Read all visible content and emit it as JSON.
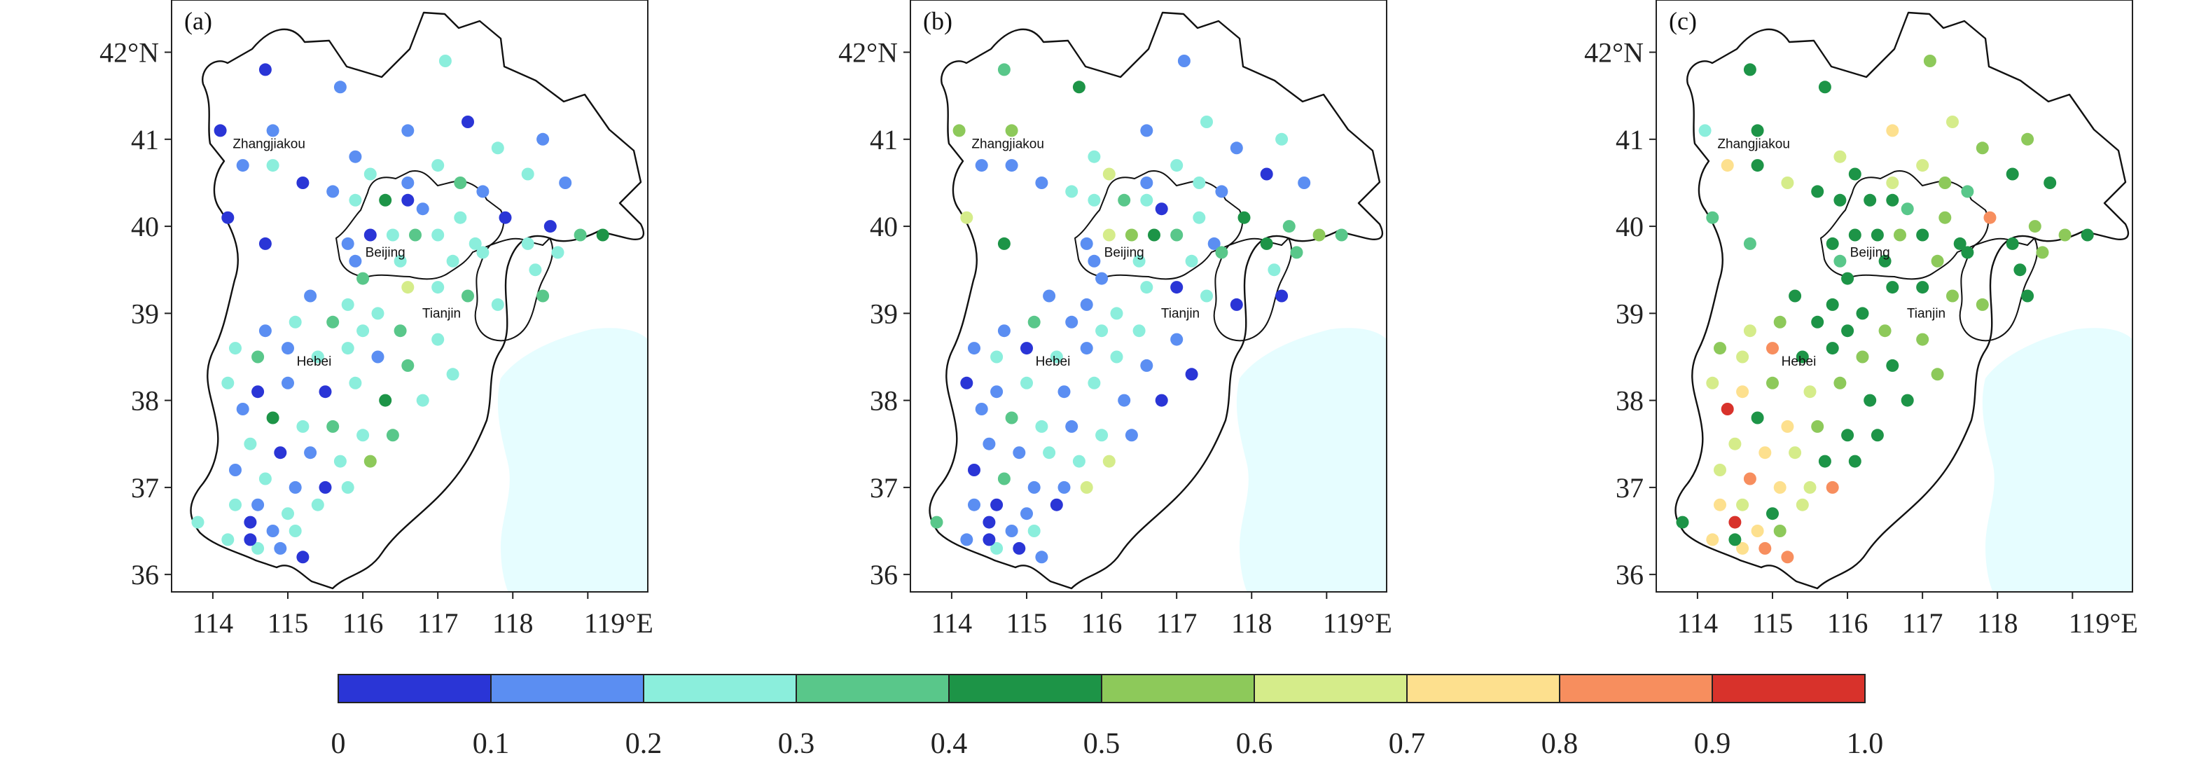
{
  "panels": [
    {
      "id": "a",
      "label": "(a)"
    },
    {
      "id": "b",
      "label": "(b)"
    },
    {
      "id": "c",
      "label": "(c)"
    }
  ],
  "lat_ticks": [
    "42°N",
    "41",
    "40",
    "39",
    "38",
    "37",
    "36"
  ],
  "lon_ticks": [
    "114",
    "115",
    "116",
    "117",
    "118",
    "119°E"
  ],
  "places": [
    "Zhangjiakou",
    "Beijing",
    "Tianjin",
    "Hebei"
  ],
  "colorbar": {
    "ticks": [
      "0",
      "0.1",
      "0.2",
      "0.3",
      "0.4",
      "0.5",
      "0.6",
      "0.7",
      "0.8",
      "0.9",
      "1.0"
    ],
    "colors": [
      "#2a35d6",
      "#5b8ef2",
      "#8beedc",
      "#59c78a",
      "#1d9447",
      "#8dc95a",
      "#d5ec8a",
      "#fde08e",
      "#f78e5e",
      "#d8322b"
    ]
  },
  "map_colors": {
    "sea": "#e6fdff",
    "border": "#111111"
  },
  "chart_data": {
    "type": "scatter",
    "description_note": "",
    "lat_range": [
      36,
      42
    ],
    "lon_range": [
      113.5,
      119.5
    ],
    "value_range": [
      0,
      1.0
    ],
    "stations": [
      {
        "lon": 114.7,
        "lat": 41.8,
        "v": [
          0.05,
          0.35,
          0.45
        ]
      },
      {
        "lon": 115.7,
        "lat": 41.6,
        "v": [
          0.15,
          0.45,
          0.45
        ]
      },
      {
        "lon": 117.1,
        "lat": 41.9,
        "v": [
          0.25,
          0.15,
          0.55
        ]
      },
      {
        "lon": 114.1,
        "lat": 41.1,
        "v": [
          0.05,
          0.55,
          0.25
        ]
      },
      {
        "lon": 114.8,
        "lat": 41.1,
        "v": [
          0.15,
          0.55,
          0.45
        ]
      },
      {
        "lon": 116.6,
        "lat": 41.1,
        "v": [
          0.15,
          0.15,
          0.75
        ]
      },
      {
        "lon": 117.4,
        "lat": 41.2,
        "v": [
          0.05,
          0.25,
          0.65
        ]
      },
      {
        "lon": 117.8,
        "lat": 40.9,
        "v": [
          0.25,
          0.15,
          0.55
        ]
      },
      {
        "lon": 118.4,
        "lat": 41.0,
        "v": [
          0.15,
          0.25,
          0.55
        ]
      },
      {
        "lon": 115.9,
        "lat": 40.8,
        "v": [
          0.15,
          0.25,
          0.65
        ]
      },
      {
        "lon": 114.4,
        "lat": 40.7,
        "v": [
          0.15,
          0.15,
          0.75
        ]
      },
      {
        "lon": 114.8,
        "lat": 40.7,
        "v": [
          0.25,
          0.15,
          0.45
        ]
      },
      {
        "lon": 115.2,
        "lat": 40.5,
        "v": [
          0.05,
          0.15,
          0.65
        ]
      },
      {
        "lon": 115.6,
        "lat": 40.4,
        "v": [
          0.15,
          0.25,
          0.45
        ]
      },
      {
        "lon": 116.1,
        "lat": 40.6,
        "v": [
          0.25,
          0.65,
          0.45
        ]
      },
      {
        "lon": 116.6,
        "lat": 40.5,
        "v": [
          0.15,
          0.15,
          0.65
        ]
      },
      {
        "lon": 117.0,
        "lat": 40.7,
        "v": [
          0.25,
          0.25,
          0.65
        ]
      },
      {
        "lon": 117.3,
        "lat": 40.5,
        "v": [
          0.35,
          0.25,
          0.55
        ]
      },
      {
        "lon": 117.6,
        "lat": 40.4,
        "v": [
          0.15,
          0.15,
          0.35
        ]
      },
      {
        "lon": 118.2,
        "lat": 40.6,
        "v": [
          0.25,
          0.05,
          0.45
        ]
      },
      {
        "lon": 118.7,
        "lat": 40.5,
        "v": [
          0.15,
          0.15,
          0.45
        ]
      },
      {
        "lon": 114.2,
        "lat": 40.1,
        "v": [
          0.05,
          0.65,
          0.35
        ]
      },
      {
        "lon": 115.9,
        "lat": 40.3,
        "v": [
          0.25,
          0.25,
          0.45
        ]
      },
      {
        "lon": 116.3,
        "lat": 40.3,
        "v": [
          0.45,
          0.35,
          0.45
        ]
      },
      {
        "lon": 116.6,
        "lat": 40.3,
        "v": [
          0.05,
          0.25,
          0.45
        ]
      },
      {
        "lon": 116.8,
        "lat": 40.2,
        "v": [
          0.15,
          0.05,
          0.35
        ]
      },
      {
        "lon": 117.3,
        "lat": 40.1,
        "v": [
          0.25,
          0.25,
          0.55
        ]
      },
      {
        "lon": 117.9,
        "lat": 40.1,
        "v": [
          0.05,
          0.45,
          0.85
        ]
      },
      {
        "lon": 118.5,
        "lat": 40.0,
        "v": [
          0.05,
          0.35,
          0.55
        ]
      },
      {
        "lon": 118.9,
        "lat": 39.9,
        "v": [
          0.35,
          0.55,
          0.55
        ]
      },
      {
        "lon": 119.2,
        "lat": 39.9,
        "v": [
          0.45,
          0.35,
          0.45
        ]
      },
      {
        "lon": 114.7,
        "lat": 39.8,
        "v": [
          0.05,
          0.45,
          0.35
        ]
      },
      {
        "lon": 115.8,
        "lat": 39.8,
        "v": [
          0.15,
          0.15,
          0.45
        ]
      },
      {
        "lon": 116.1,
        "lat": 39.9,
        "v": [
          0.05,
          0.65,
          0.45
        ]
      },
      {
        "lon": 116.4,
        "lat": 39.9,
        "v": [
          0.25,
          0.55,
          0.45
        ]
      },
      {
        "lon": 116.7,
        "lat": 39.9,
        "v": [
          0.35,
          0.45,
          0.55
        ]
      },
      {
        "lon": 117.0,
        "lat": 39.9,
        "v": [
          0.25,
          0.35,
          0.45
        ]
      },
      {
        "lon": 117.5,
        "lat": 39.8,
        "v": [
          0.25,
          0.15,
          0.45
        ]
      },
      {
        "lon": 118.2,
        "lat": 39.8,
        "v": [
          0.25,
          0.45,
          0.45
        ]
      },
      {
        "lon": 118.6,
        "lat": 39.7,
        "v": [
          0.25,
          0.35,
          0.55
        ]
      },
      {
        "lon": 115.9,
        "lat": 39.6,
        "v": [
          0.15,
          0.15,
          0.35
        ]
      },
      {
        "lon": 116.5,
        "lat": 39.6,
        "v": [
          0.25,
          0.25,
          0.45
        ]
      },
      {
        "lon": 117.2,
        "lat": 39.6,
        "v": [
          0.25,
          0.25,
          0.55
        ]
      },
      {
        "lon": 117.6,
        "lat": 39.7,
        "v": [
          0.25,
          0.35,
          0.45
        ]
      },
      {
        "lon": 118.3,
        "lat": 39.5,
        "v": [
          0.25,
          0.25,
          0.45
        ]
      },
      {
        "lon": 116.0,
        "lat": 39.4,
        "v": [
          0.35,
          0.15,
          0.45
        ]
      },
      {
        "lon": 116.6,
        "lat": 39.3,
        "v": [
          0.65,
          0.25,
          0.45
        ]
      },
      {
        "lon": 117.0,
        "lat": 39.3,
        "v": [
          0.25,
          0.05,
          0.45
        ]
      },
      {
        "lon": 117.4,
        "lat": 39.2,
        "v": [
          0.35,
          0.25,
          0.55
        ]
      },
      {
        "lon": 117.8,
        "lat": 39.1,
        "v": [
          0.25,
          0.05,
          0.55
        ]
      },
      {
        "lon": 118.4,
        "lat": 39.2,
        "v": [
          0.35,
          0.05,
          0.45
        ]
      },
      {
        "lon": 115.3,
        "lat": 39.2,
        "v": [
          0.15,
          0.15,
          0.45
        ]
      },
      {
        "lon": 115.8,
        "lat": 39.1,
        "v": [
          0.25,
          0.15,
          0.45
        ]
      },
      {
        "lon": 116.2,
        "lat": 39.0,
        "v": [
          0.25,
          0.25,
          0.45
        ]
      },
      {
        "lon": 114.7,
        "lat": 38.8,
        "v": [
          0.15,
          0.15,
          0.65
        ]
      },
      {
        "lon": 115.1,
        "lat": 38.9,
        "v": [
          0.25,
          0.35,
          0.55
        ]
      },
      {
        "lon": 115.6,
        "lat": 38.9,
        "v": [
          0.35,
          0.15,
          0.45
        ]
      },
      {
        "lon": 116.0,
        "lat": 38.8,
        "v": [
          0.25,
          0.25,
          0.45
        ]
      },
      {
        "lon": 116.5,
        "lat": 38.8,
        "v": [
          0.35,
          0.25,
          0.55
        ]
      },
      {
        "lon": 117.0,
        "lat": 38.7,
        "v": [
          0.25,
          0.15,
          0.55
        ]
      },
      {
        "lon": 114.3,
        "lat": 38.6,
        "v": [
          0.25,
          0.15,
          0.55
        ]
      },
      {
        "lon": 114.6,
        "lat": 38.5,
        "v": [
          0.35,
          0.25,
          0.65
        ]
      },
      {
        "lon": 115.0,
        "lat": 38.6,
        "v": [
          0.15,
          0.05,
          0.85
        ]
      },
      {
        "lon": 115.4,
        "lat": 38.5,
        "v": [
          0.25,
          0.25,
          0.45
        ]
      },
      {
        "lon": 115.8,
        "lat": 38.6,
        "v": [
          0.25,
          0.15,
          0.45
        ]
      },
      {
        "lon": 116.2,
        "lat": 38.5,
        "v": [
          0.15,
          0.25,
          0.55
        ]
      },
      {
        "lon": 116.6,
        "lat": 38.4,
        "v": [
          0.35,
          0.15,
          0.45
        ]
      },
      {
        "lon": 117.2,
        "lat": 38.3,
        "v": [
          0.25,
          0.05,
          0.55
        ]
      },
      {
        "lon": 114.2,
        "lat": 38.2,
        "v": [
          0.25,
          0.05,
          0.65
        ]
      },
      {
        "lon": 114.6,
        "lat": 38.1,
        "v": [
          0.05,
          0.15,
          0.75
        ]
      },
      {
        "lon": 115.0,
        "lat": 38.2,
        "v": [
          0.15,
          0.25,
          0.55
        ]
      },
      {
        "lon": 115.5,
        "lat": 38.1,
        "v": [
          0.05,
          0.15,
          0.65
        ]
      },
      {
        "lon": 115.9,
        "lat": 38.2,
        "v": [
          0.25,
          0.25,
          0.55
        ]
      },
      {
        "lon": 116.3,
        "lat": 38.0,
        "v": [
          0.45,
          0.15,
          0.45
        ]
      },
      {
        "lon": 116.8,
        "lat": 38.0,
        "v": [
          0.25,
          0.05,
          0.45
        ]
      },
      {
        "lon": 114.4,
        "lat": 37.9,
        "v": [
          0.15,
          0.15,
          0.95
        ]
      },
      {
        "lon": 114.8,
        "lat": 37.8,
        "v": [
          0.45,
          0.35,
          0.45
        ]
      },
      {
        "lon": 115.2,
        "lat": 37.7,
        "v": [
          0.25,
          0.25,
          0.75
        ]
      },
      {
        "lon": 115.6,
        "lat": 37.7,
        "v": [
          0.35,
          0.15,
          0.55
        ]
      },
      {
        "lon": 116.0,
        "lat": 37.6,
        "v": [
          0.25,
          0.25,
          0.45
        ]
      },
      {
        "lon": 116.4,
        "lat": 37.6,
        "v": [
          0.35,
          0.15,
          0.45
        ]
      },
      {
        "lon": 114.5,
        "lat": 37.5,
        "v": [
          0.25,
          0.15,
          0.65
        ]
      },
      {
        "lon": 114.9,
        "lat": 37.4,
        "v": [
          0.05,
          0.15,
          0.75
        ]
      },
      {
        "lon": 115.3,
        "lat": 37.4,
        "v": [
          0.15,
          0.25,
          0.65
        ]
      },
      {
        "lon": 115.7,
        "lat": 37.3,
        "v": [
          0.25,
          0.25,
          0.45
        ]
      },
      {
        "lon": 116.1,
        "lat": 37.3,
        "v": [
          0.55,
          0.65,
          0.45
        ]
      },
      {
        "lon": 114.3,
        "lat": 37.2,
        "v": [
          0.15,
          0.05,
          0.65
        ]
      },
      {
        "lon": 114.7,
        "lat": 37.1,
        "v": [
          0.25,
          0.35,
          0.85
        ]
      },
      {
        "lon": 115.1,
        "lat": 37.0,
        "v": [
          0.15,
          0.15,
          0.75
        ]
      },
      {
        "lon": 115.5,
        "lat": 37.0,
        "v": [
          0.05,
          0.15,
          0.65
        ]
      },
      {
        "lon": 115.8,
        "lat": 37.0,
        "v": [
          0.25,
          0.65,
          0.85
        ]
      },
      {
        "lon": 114.3,
        "lat": 36.8,
        "v": [
          0.25,
          0.15,
          0.75
        ]
      },
      {
        "lon": 114.6,
        "lat": 36.8,
        "v": [
          0.15,
          0.05,
          0.65
        ]
      },
      {
        "lon": 115.0,
        "lat": 36.7,
        "v": [
          0.25,
          0.15,
          0.45
        ]
      },
      {
        "lon": 115.4,
        "lat": 36.8,
        "v": [
          0.25,
          0.05,
          0.65
        ]
      },
      {
        "lon": 113.8,
        "lat": 36.6,
        "v": [
          0.25,
          0.35,
          0.45
        ]
      },
      {
        "lon": 114.5,
        "lat": 36.6,
        "v": [
          0.05,
          0.05,
          0.95
        ]
      },
      {
        "lon": 114.8,
        "lat": 36.5,
        "v": [
          0.15,
          0.15,
          0.75
        ]
      },
      {
        "lon": 115.1,
        "lat": 36.5,
        "v": [
          0.25,
          0.25,
          0.55
        ]
      },
      {
        "lon": 114.2,
        "lat": 36.4,
        "v": [
          0.25,
          0.15,
          0.75
        ]
      },
      {
        "lon": 114.6,
        "lat": 36.3,
        "v": [
          0.25,
          0.25,
          0.75
        ]
      },
      {
        "lon": 114.9,
        "lat": 36.3,
        "v": [
          0.15,
          0.05,
          0.85
        ]
      },
      {
        "lon": 115.2,
        "lat": 36.2,
        "v": [
          0.05,
          0.15,
          0.85
        ]
      },
      {
        "lon": 114.5,
        "lat": 36.4,
        "v": [
          0.05,
          0.05,
          0.45
        ]
      }
    ]
  }
}
